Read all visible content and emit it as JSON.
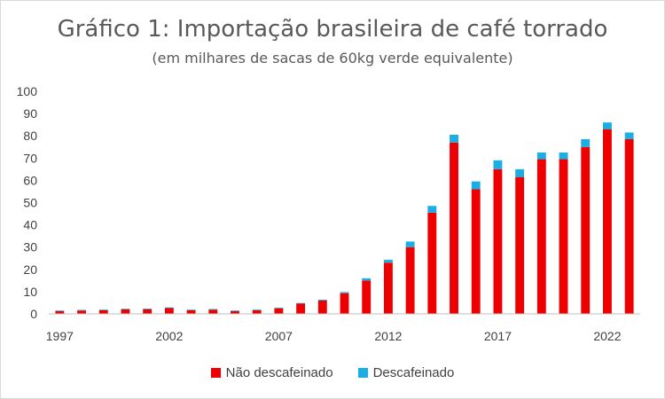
{
  "colors": {
    "nao_descafeinado": "#ee0000",
    "descafeinado": "#1aaee5",
    "axis": "#bfbfbf",
    "text": "#404040"
  },
  "chart_data": {
    "type": "bar",
    "stacked": true,
    "title": "Gráfico 1: Importação brasileira de café torrado",
    "subtitle": "(em milhares de sacas de 60kg verde equivalente)",
    "xlabel": "",
    "ylabel": "",
    "ylim": [
      0,
      100
    ],
    "yticks": [
      0,
      10,
      20,
      30,
      40,
      50,
      60,
      70,
      80,
      90,
      100
    ],
    "xtick_labels": [
      "1997",
      "2002",
      "2007",
      "2012",
      "2017",
      "2022"
    ],
    "categories": [
      1997,
      1998,
      1999,
      2000,
      2001,
      2002,
      2003,
      2004,
      2005,
      2006,
      2007,
      2008,
      2009,
      2010,
      2011,
      2012,
      2013,
      2014,
      2015,
      2016,
      2017,
      2018,
      2019,
      2020,
      2021,
      2022,
      2023
    ],
    "series": [
      {
        "name": "Não descafeinado",
        "values": [
          1.2,
          1.5,
          1.6,
          2.0,
          2.1,
          2.6,
          1.6,
          1.9,
          1.2,
          1.6,
          2.5,
          4.6,
          6.0,
          9.3,
          15.0,
          23.0,
          30.0,
          45.5,
          77.0,
          56.0,
          65.0,
          61.5,
          69.5,
          69.5,
          75.0,
          83.0,
          78.5
        ]
      },
      {
        "name": "Descafeinado",
        "values": [
          0.3,
          0.3,
          0.3,
          0.3,
          0.3,
          0.3,
          0.3,
          0.3,
          0.3,
          0.3,
          0.3,
          0.3,
          0.4,
          0.5,
          1.0,
          1.3,
          2.5,
          3.0,
          3.5,
          3.5,
          4.0,
          3.5,
          3.0,
          3.0,
          3.5,
          3.0,
          3.0
        ]
      }
    ],
    "legend": "bottom"
  }
}
